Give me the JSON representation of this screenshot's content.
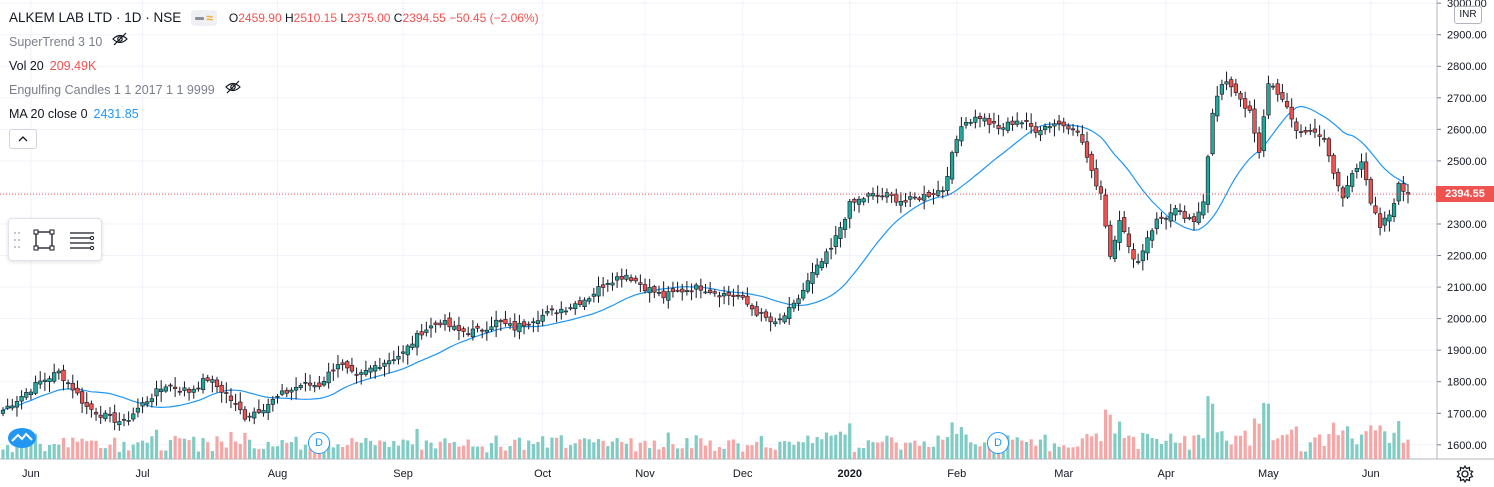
{
  "header": {
    "symbol": "ALKEM LAB LTD · 1D · NSE",
    "ohlc": {
      "o_label": "O",
      "o": "2459.90",
      "h_label": "H",
      "h": "2510.15",
      "l_label": "L",
      "l": "2375.00",
      "c_label": "C",
      "c": "2394.55",
      "change": "−50.45 (−2.06%)"
    }
  },
  "indicators": [
    {
      "name": "SuperTrend 3 10",
      "value": "",
      "hidden": true
    },
    {
      "name": "Vol 20",
      "value": "209.49K",
      "value_color": "#ef5350"
    },
    {
      "name": "Engulfing Candles 1 1 2017 1 1 9999",
      "value": "",
      "hidden": true
    },
    {
      "name": "MA 20 close 0",
      "value": "2431.85",
      "value_color": "#2196f3"
    }
  ],
  "currency": "INR",
  "last_price_label": "2394.55",
  "event_marker_label": "D",
  "icons": {
    "eye_off": "eye-crossed-icon",
    "collapse": "chevron-up-icon",
    "rectangle": "rectangle-tool-icon",
    "lines": "lines-menu-icon",
    "logo": "tradingview-cloud-icon",
    "settings": "gear-icon"
  },
  "colors": {
    "up": "#26a69a",
    "down": "#ef5350",
    "ma": "#2196f3",
    "up_volume": "#80cbc4",
    "down_volume": "#f4a7a6",
    "grid": "#f0f3fa"
  },
  "chart_data": {
    "type": "candlestick",
    "x_labels": [
      "Jun",
      "Jul",
      "Aug",
      "Sep",
      "Oct",
      "Nov",
      "Dec",
      "2020",
      "Feb",
      "Mar",
      "Apr",
      "May",
      "Jun"
    ],
    "y_ticks": [
      1600,
      1700,
      1800,
      1900,
      2000,
      2100,
      2200,
      2300,
      2400,
      2500,
      2600,
      2700,
      2800,
      2900,
      3000
    ],
    "y_tick_labels": [
      "1600.00",
      "1700.00",
      "1800.00",
      "1900.00",
      "2000.00",
      "2100.00",
      "2200.00",
      "2300.00",
      "2400.00",
      "2500.00",
      "2600.00",
      "2700.00",
      "2800.00",
      "2900.00",
      "3000.00"
    ],
    "ylim": [
      1555,
      3010
    ],
    "last_price": 2394.55,
    "anchors": [
      [
        0,
        1710
      ],
      [
        8,
        1800
      ],
      [
        12,
        1830
      ],
      [
        15,
        1780
      ],
      [
        18,
        1720
      ],
      [
        22,
        1690
      ],
      [
        26,
        1670
      ],
      [
        30,
        1730
      ],
      [
        35,
        1790
      ],
      [
        40,
        1770
      ],
      [
        44,
        1810
      ],
      [
        48,
        1760
      ],
      [
        52,
        1690
      ],
      [
        56,
        1720
      ],
      [
        60,
        1760
      ],
      [
        64,
        1790
      ],
      [
        68,
        1790
      ],
      [
        72,
        1860
      ],
      [
        76,
        1810
      ],
      [
        80,
        1850
      ],
      [
        86,
        1890
      ],
      [
        90,
        1960
      ],
      [
        94,
        1990
      ],
      [
        98,
        1960
      ],
      [
        102,
        1960
      ],
      [
        106,
        1990
      ],
      [
        110,
        1970
      ],
      [
        114,
        2000
      ],
      [
        118,
        2020
      ],
      [
        122,
        2040
      ],
      [
        126,
        2070
      ],
      [
        130,
        2120
      ],
      [
        134,
        2140
      ],
      [
        138,
        2100
      ],
      [
        142,
        2070
      ],
      [
        146,
        2090
      ],
      [
        150,
        2100
      ],
      [
        154,
        2080
      ],
      [
        158,
        2070
      ],
      [
        162,
        2020
      ],
      [
        166,
        1980
      ],
      [
        170,
        2040
      ],
      [
        174,
        2140
      ],
      [
        178,
        2220
      ],
      [
        182,
        2360
      ],
      [
        186,
        2390
      ],
      [
        190,
        2390
      ],
      [
        194,
        2370
      ],
      [
        198,
        2390
      ],
      [
        202,
        2410
      ],
      [
        206,
        2620
      ],
      [
        210,
        2640
      ],
      [
        214,
        2600
      ],
      [
        218,
        2630
      ],
      [
        222,
        2600
      ],
      [
        226,
        2620
      ],
      [
        230,
        2610
      ],
      [
        232,
        2560
      ],
      [
        234,
        2460
      ],
      [
        236,
        2400
      ],
      [
        238,
        2200
      ],
      [
        240,
        2320
      ],
      [
        242,
        2220
      ],
      [
        244,
        2180
      ],
      [
        246,
        2260
      ],
      [
        248,
        2310
      ],
      [
        252,
        2340
      ],
      [
        256,
        2300
      ],
      [
        258,
        2380
      ],
      [
        260,
        2660
      ],
      [
        262,
        2740
      ],
      [
        264,
        2740
      ],
      [
        266,
        2700
      ],
      [
        268,
        2650
      ],
      [
        270,
        2520
      ],
      [
        272,
        2750
      ],
      [
        274,
        2720
      ],
      [
        276,
        2660
      ],
      [
        278,
        2600
      ],
      [
        280,
        2590
      ],
      [
        282,
        2600
      ],
      [
        284,
        2560
      ],
      [
        286,
        2460
      ],
      [
        288,
        2380
      ],
      [
        290,
        2470
      ],
      [
        292,
        2500
      ],
      [
        294,
        2360
      ],
      [
        296,
        2290
      ],
      [
        298,
        2330
      ],
      [
        300,
        2420
      ],
      [
        302,
        2394.55
      ]
    ],
    "volume_scale": "relative"
  }
}
